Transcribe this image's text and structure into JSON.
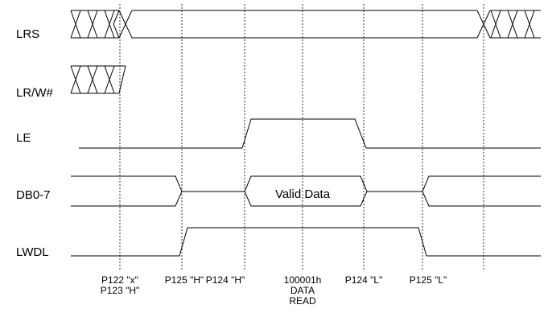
{
  "signals": {
    "lrs": "LRS",
    "lrw": "LR/W#",
    "le": "LE",
    "db": "DB0-7",
    "lwdl": "LWDL"
  },
  "bus_value": "Valid Data",
  "steps": [
    {
      "lines": [
        "P122 \"x\"",
        "P123 \"H\""
      ]
    },
    {
      "lines": [
        "P125 \"H\""
      ]
    },
    {
      "lines": [
        "P124 \"H\""
      ]
    },
    {
      "lines": [
        "100001h",
        "DATA",
        "READ"
      ]
    },
    {
      "lines": [
        "P124 \"L\""
      ]
    },
    {
      "lines": [
        "P125 \"L\""
      ]
    }
  ]
}
